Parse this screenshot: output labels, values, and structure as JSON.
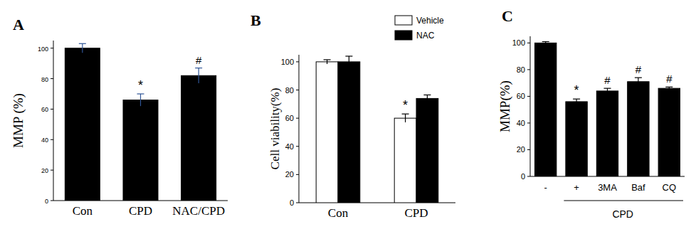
{
  "chart_data": [
    {
      "type": "bar",
      "title": "A",
      "ylabel": "MMP (%)",
      "categories": [
        "Con",
        "CPD",
        "NAC/CPD"
      ],
      "values": [
        100,
        66,
        82
      ],
      "errors": [
        3,
        4,
        5
      ],
      "color": "#000000",
      "ylim": [
        0,
        105
      ],
      "yticks": [
        0,
        20,
        40,
        60,
        80,
        100
      ],
      "annotations": [
        {
          "text": "*",
          "category": "CPD"
        },
        {
          "text": "#",
          "category": "NAC/CPD"
        }
      ]
    },
    {
      "type": "bar",
      "title": "B",
      "ylabel": "Cell viability(%)",
      "categories": [
        "Con",
        "CPD"
      ],
      "series": [
        {
          "name": "Vehicle",
          "color": "#ffffff",
          "values": [
            100,
            60
          ],
          "errors": [
            1.5,
            3
          ]
        },
        {
          "name": "NAC",
          "color": "#000000",
          "values": [
            100,
            74
          ],
          "errors": [
            4,
            2.5
          ]
        }
      ],
      "ylim": [
        0,
        105
      ],
      "yticks": [
        0,
        20,
        40,
        60,
        80,
        100
      ],
      "legend": "upper right",
      "annotations": [
        {
          "text": "*",
          "category": "CPD",
          "series": "Vehicle"
        }
      ]
    },
    {
      "type": "bar",
      "title": "C",
      "ylabel": "MMP(%)",
      "xlabel": "CPD",
      "categories": [
        "-",
        "+",
        "3MA",
        "Baf",
        "CQ"
      ],
      "values": [
        100,
        56,
        64,
        71,
        66
      ],
      "errors": [
        1,
        2,
        2,
        3,
        1
      ],
      "color": "#000000",
      "ylim": [
        0,
        105
      ],
      "yticks": [
        0,
        20,
        40,
        60,
        80,
        100
      ],
      "annotations": [
        {
          "text": "*",
          "category": "+"
        },
        {
          "text": "#",
          "category": "3MA"
        },
        {
          "text": "#",
          "category": "Baf"
        },
        {
          "text": "#",
          "category": "CQ"
        }
      ]
    }
  ]
}
